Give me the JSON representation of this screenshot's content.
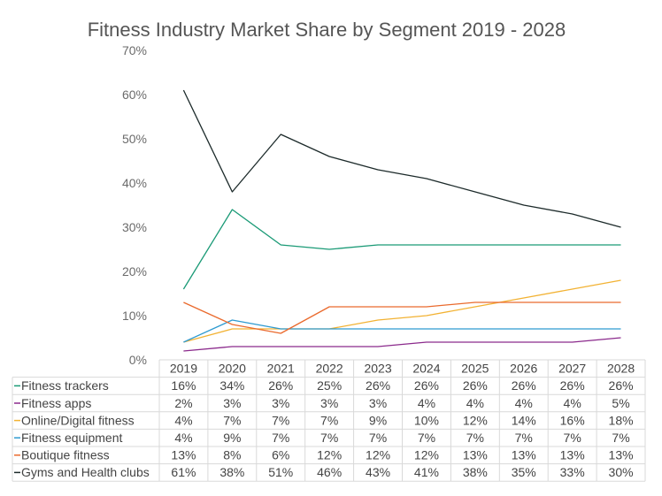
{
  "chart_data": {
    "type": "line",
    "title": "Fitness Industry Market Share by Segment 2019 - 2028",
    "categories": [
      "2019",
      "2020",
      "2021",
      "2022",
      "2023",
      "2024",
      "2025",
      "2026",
      "2027",
      "2028"
    ],
    "y_ticks": [
      "0%",
      "10%",
      "20%",
      "30%",
      "40%",
      "50%",
      "60%",
      "70%"
    ],
    "ylim": [
      0,
      70
    ],
    "legend_position": "data-table-below",
    "series": [
      {
        "name": "Fitness trackers",
        "color": "#1a9a76",
        "values": [
          16,
          34,
          26,
          25,
          26,
          26,
          26,
          26,
          26,
          26
        ],
        "labels": [
          "16%",
          "34%",
          "26%",
          "25%",
          "26%",
          "26%",
          "26%",
          "26%",
          "26%",
          "26%"
        ]
      },
      {
        "name": "Fitness apps",
        "color": "#8b2a8c",
        "values": [
          2,
          3,
          3,
          3,
          3,
          4,
          4,
          4,
          4,
          5
        ],
        "labels": [
          "2%",
          "3%",
          "3%",
          "3%",
          "3%",
          "4%",
          "4%",
          "4%",
          "4%",
          "5%"
        ]
      },
      {
        "name": "Online/Digital fitness",
        "color": "#f2b233",
        "values": [
          4,
          7,
          7,
          7,
          9,
          10,
          12,
          14,
          16,
          18
        ],
        "labels": [
          "4%",
          "7%",
          "7%",
          "7%",
          "9%",
          "10%",
          "12%",
          "14%",
          "16%",
          "18%"
        ]
      },
      {
        "name": "Fitness equipment",
        "color": "#2e9ad0",
        "values": [
          4,
          9,
          7,
          7,
          7,
          7,
          7,
          7,
          7,
          7
        ],
        "labels": [
          "4%",
          "9%",
          "7%",
          "7%",
          "7%",
          "7%",
          "7%",
          "7%",
          "7%",
          "7%"
        ]
      },
      {
        "name": "Boutique fitness",
        "color": "#ea6a2d",
        "values": [
          13,
          8,
          6,
          12,
          12,
          12,
          13,
          13,
          13,
          13
        ],
        "labels": [
          "13%",
          "8%",
          "6%",
          "12%",
          "12%",
          "12%",
          "13%",
          "13%",
          "13%",
          "13%"
        ]
      },
      {
        "name": "Gyms and Health clubs",
        "color": "#1c2a2a",
        "values": [
          61,
          38,
          51,
          46,
          43,
          41,
          38,
          35,
          33,
          30
        ],
        "labels": [
          "61%",
          "38%",
          "51%",
          "46%",
          "43%",
          "41%",
          "38%",
          "35%",
          "33%",
          "30%"
        ]
      }
    ]
  }
}
